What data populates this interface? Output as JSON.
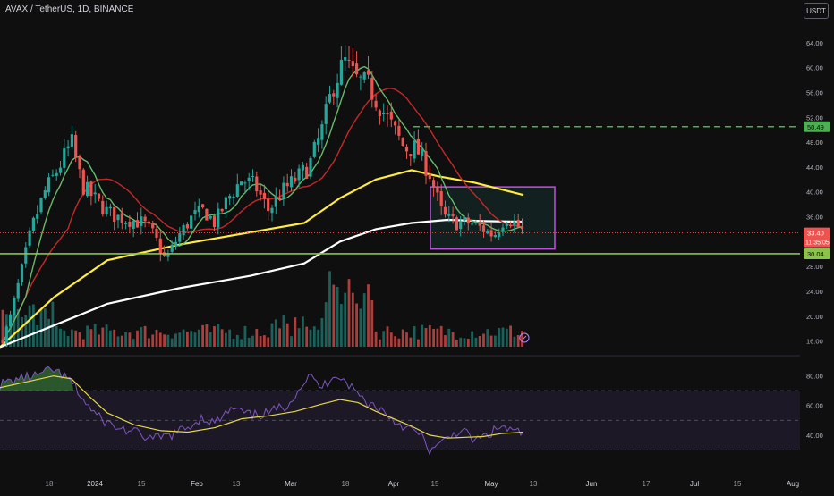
{
  "header": {
    "symbol_title": "AVAX / TetherUS, 1D, BINANCE",
    "currency_button": "USDT"
  },
  "colors": {
    "background": "#0f0f0f",
    "up_candle": "#26a69a",
    "down_candle": "#ef5350",
    "ma_fast": "#66bb6a",
    "ma_mid": "#c62828",
    "ma_slow": "#ffeb3b",
    "ma_long": "#ffffff",
    "support_line": "#8bc34a",
    "resistance_line": "#4caf50",
    "range_box": "#c34fe0",
    "rsi_line": "#7e57c2",
    "rsi_ma": "#e5d849"
  },
  "price_axis": {
    "labels": [
      "64.00",
      "60.00",
      "56.00",
      "52.00",
      "48.00",
      "44.00",
      "40.00",
      "36.00",
      "28.00",
      "24.00",
      "20.00",
      "16.00"
    ]
  },
  "price_tags": {
    "resistance": "50.49",
    "last_price": "33.40",
    "countdown": "11:35:05",
    "support": "30.04"
  },
  "rsi_axis": {
    "labels": [
      "80.00",
      "60.00",
      "40.00"
    ]
  },
  "time_axis": {
    "labels": [
      "18",
      "2024",
      "15",
      "Feb",
      "13",
      "Mar",
      "18",
      "Apr",
      "15",
      "May",
      "13",
      "Jun",
      "17",
      "Jul",
      "15",
      "Aug"
    ]
  },
  "chart_data": {
    "type": "candlestick",
    "price_range": [
      14.5,
      68
    ],
    "rsi_range": [
      20,
      90
    ],
    "rsi_levels": [
      70,
      50,
      30
    ],
    "support": 30.04,
    "resistance": 50.49,
    "last_price": 33.4,
    "range_box": {
      "price_high": 40.8,
      "price_low": 30.8
    },
    "moving_averages": [
      "ma_fast",
      "ma_mid",
      "ma_slow",
      "ma_long"
    ]
  }
}
